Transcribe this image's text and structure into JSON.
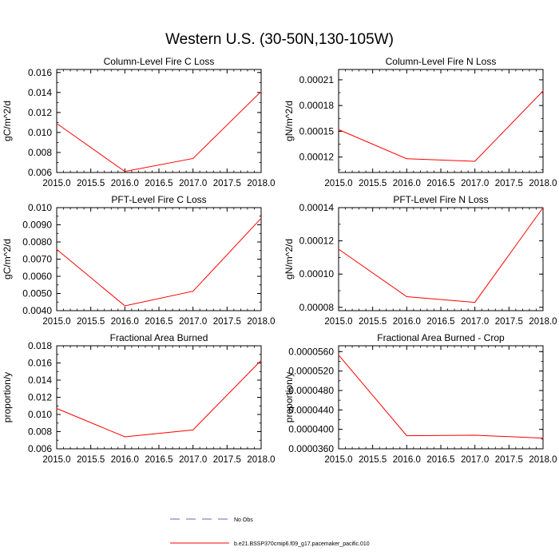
{
  "figure": {
    "title": "Western U.S. (30-50N,130-105W)"
  },
  "legend": {
    "items": [
      {
        "label": "No Obs",
        "color": "#7a5bbd",
        "dash": true
      },
      {
        "label": "b.e21.BSSP370cmip6.f09_g17.pacemaker_pacific.010",
        "color": "#ff0000",
        "dash": false
      }
    ]
  },
  "chart_data": [
    {
      "type": "line",
      "title": "Column-Level Fire C Loss",
      "xlabel": "",
      "ylabel": "gC/m^2/d",
      "xlim": [
        2015.0,
        2018.0
      ],
      "ylim": [
        0.006,
        0.0163
      ],
      "xticks": [
        "2015.0",
        "2015.5",
        "2016.0",
        "2016.5",
        "2017.0",
        "2017.5",
        "2018.0"
      ],
      "yticks": [
        "0.006",
        "0.008",
        "0.010",
        "0.012",
        "0.014",
        "0.016"
      ],
      "yticks_values": [
        0.006,
        0.008,
        0.01,
        0.012,
        0.014,
        0.016
      ],
      "x": [
        2015.0,
        2016.0,
        2017.0,
        2018.0
      ],
      "series": [
        {
          "values": [
            0.0109,
            0.0061,
            0.0074,
            0.0141
          ],
          "color": "#ff0000"
        }
      ]
    },
    {
      "type": "line",
      "title": "Column-Level Fire N Loss",
      "xlabel": "",
      "ylabel": "gN/m^2/d",
      "xlim": [
        2015.0,
        2018.0
      ],
      "ylim": [
        0.000102,
        0.000222
      ],
      "xticks": [
        "2015.0",
        "2015.5",
        "2016.0",
        "2016.5",
        "2017.0",
        "2017.5",
        "2018.0"
      ],
      "yticks": [
        "0.00012",
        "0.00015",
        "0.00018",
        "0.00021"
      ],
      "yticks_values": [
        0.00012,
        0.00015,
        0.00018,
        0.00021
      ],
      "x": [
        2015.0,
        2016.0,
        2017.0,
        2018.0
      ],
      "series": [
        {
          "values": [
            0.000152,
            0.000118,
            0.000115,
            0.000197
          ],
          "color": "#ff0000"
        }
      ]
    },
    {
      "type": "line",
      "title": "PFT-Level Fire C Loss",
      "xlabel": "",
      "ylabel": "gC/m^2/d",
      "xlim": [
        2015.0,
        2018.0
      ],
      "ylim": [
        0.004,
        0.01
      ],
      "xticks": [
        "2015.0",
        "2015.5",
        "2016.0",
        "2016.5",
        "2017.0",
        "2017.5",
        "2018.0"
      ],
      "yticks": [
        "0.0040",
        "0.0050",
        "0.0060",
        "0.0070",
        "0.0080",
        "0.0090",
        "0.010"
      ],
      "yticks_values": [
        0.004,
        0.005,
        0.006,
        0.007,
        0.008,
        0.009,
        0.01
      ],
      "x": [
        2015.0,
        2016.0,
        2017.0,
        2018.0
      ],
      "series": [
        {
          "values": [
            0.00757,
            0.00428,
            0.00513,
            0.00938
          ],
          "color": "#ff0000"
        }
      ]
    },
    {
      "type": "line",
      "title": "PFT-Level Fire N Loss",
      "xlabel": "",
      "ylabel": "gN/m^2/d",
      "xlim": [
        2015.0,
        2018.0
      ],
      "ylim": [
        7.8e-05,
        0.00014
      ],
      "xticks": [
        "2015.0",
        "2015.5",
        "2016.0",
        "2016.5",
        "2017.0",
        "2017.5",
        "2018.0"
      ],
      "yticks": [
        "0.00008",
        "0.00010",
        "0.00012",
        "0.00014"
      ],
      "yticks_values": [
        8e-05,
        0.0001,
        0.00012,
        0.00014
      ],
      "x": [
        2015.0,
        2016.0,
        2017.0,
        2018.0
      ],
      "series": [
        {
          "values": [
            0.000115,
            8.64e-05,
            8.3e-05,
            0.00014
          ],
          "color": "#ff0000"
        }
      ]
    },
    {
      "type": "line",
      "title": "Fractional Area Burned",
      "xlabel": "",
      "ylabel": "proportion/y",
      "xlim": [
        2015.0,
        2018.0
      ],
      "ylim": [
        0.006,
        0.018
      ],
      "xticks": [
        "2015.0",
        "2015.5",
        "2016.0",
        "2016.5",
        "2017.0",
        "2017.5",
        "2018.0"
      ],
      "yticks": [
        "0.006",
        "0.008",
        "0.010",
        "0.012",
        "0.014",
        "0.016",
        "0.018"
      ],
      "yticks_values": [
        0.006,
        0.008,
        0.01,
        0.012,
        0.014,
        0.016,
        0.018
      ],
      "x": [
        2015.0,
        2016.0,
        2017.0,
        2018.0
      ],
      "series": [
        {
          "values": [
            0.0107,
            0.0074,
            0.0082,
            0.0163
          ],
          "color": "#ff0000"
        }
      ]
    },
    {
      "type": "line",
      "title": "Fractional Area Burned - Crop",
      "xlabel": "",
      "ylabel": "proportion/y",
      "xlim": [
        2015.0,
        2018.0
      ],
      "ylim": [
        3.6e-05,
        5.72e-05
      ],
      "xticks": [
        "2015.0",
        "2015.5",
        "2016.0",
        "2016.5",
        "2017.0",
        "2017.5",
        "2018.0"
      ],
      "yticks": [
        "0.0000360",
        "0.0000400",
        "0.0000440",
        "0.0000480",
        "0.0000520",
        "0.0000560"
      ],
      "yticks_values": [
        3.6e-05,
        4e-05,
        4.4e-05,
        4.8e-05,
        5.2e-05,
        5.6e-05
      ],
      "x": [
        2015.0,
        2016.0,
        2017.0,
        2018.0
      ],
      "series": [
        {
          "values": [
            5.53e-05,
            3.87e-05,
            3.88e-05,
            3.82e-05
          ],
          "color": "#ff0000"
        }
      ]
    }
  ]
}
